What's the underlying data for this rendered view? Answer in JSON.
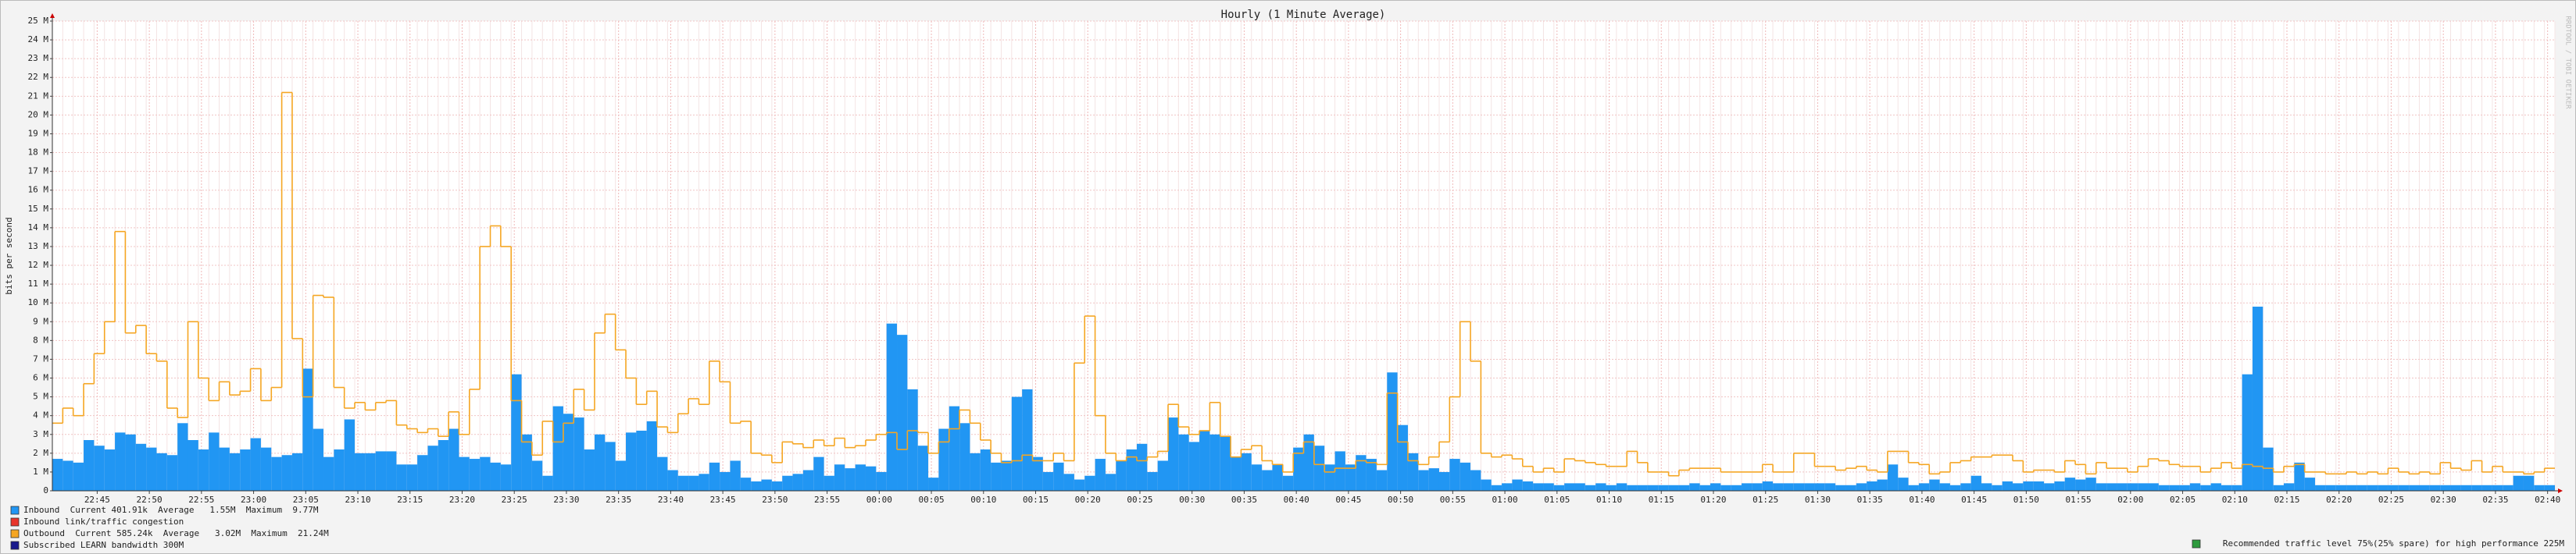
{
  "chart_data": {
    "type": "bar_step",
    "title": "Hourly (1 Minute Average)",
    "y_label": "bits per second",
    "side_text": "RRDTOOL / TOBI OETIKER",
    "categories": [
      null,
      null,
      null,
      null,
      "22:45",
      null,
      null,
      null,
      null,
      "22:50",
      null,
      null,
      null,
      null,
      "22:55",
      null,
      null,
      null,
      null,
      "23:00",
      null,
      null,
      null,
      null,
      "23:05",
      null,
      null,
      null,
      null,
      "23:10",
      null,
      null,
      null,
      null,
      "23:15",
      null,
      null,
      null,
      null,
      "23:20",
      null,
      null,
      null,
      null,
      "23:25",
      null,
      null,
      null,
      null,
      "23:30",
      null,
      null,
      null,
      null,
      "23:35",
      null,
      null,
      null,
      null,
      "23:40",
      null,
      null,
      null,
      null,
      "23:45",
      null,
      null,
      null,
      null,
      "23:50",
      null,
      null,
      null,
      null,
      "23:55",
      null,
      null,
      null,
      null,
      "00:00",
      null,
      null,
      null,
      null,
      "00:05",
      null,
      null,
      null,
      null,
      "00:10",
      null,
      null,
      null,
      null,
      "00:15",
      null,
      null,
      null,
      null,
      "00:20",
      null,
      null,
      null,
      null,
      "00:25",
      null,
      null,
      null,
      null,
      "00:30",
      null,
      null,
      null,
      null,
      "00:35",
      null,
      null,
      null,
      null,
      "00:40",
      null,
      null,
      null,
      null,
      "00:45",
      null,
      null,
      null,
      null,
      "00:50",
      null,
      null,
      null,
      null,
      "00:55",
      null,
      null,
      null,
      null,
      "01:00",
      null,
      null,
      null,
      null,
      "01:05",
      null,
      null,
      null,
      null,
      "01:10",
      null,
      null,
      null,
      null,
      "01:15",
      null,
      null,
      null,
      null,
      "01:20",
      null,
      null,
      null,
      null,
      "01:25",
      null,
      null,
      null,
      null,
      "01:30",
      null,
      null,
      null,
      null,
      "01:35",
      null,
      null,
      null,
      null,
      "01:40",
      null,
      null,
      null,
      null,
      "01:45",
      null,
      null,
      null,
      null,
      "01:50",
      null,
      null,
      null,
      null,
      "01:55",
      null,
      null,
      null,
      null,
      "02:00",
      null,
      null,
      null,
      null,
      "02:05",
      null,
      null,
      null,
      null,
      "02:10",
      null,
      null,
      null,
      null,
      "02:15",
      null,
      null,
      null,
      null,
      "02:20",
      null,
      null,
      null,
      null,
      "02:25",
      null,
      null,
      null,
      null,
      "02:30",
      null,
      null,
      null,
      null,
      "02:35",
      null,
      null,
      null,
      null,
      "02:40"
    ],
    "series": [
      {
        "name": "Inbound",
        "stats": "Current 401.91k  Average   1.55M  Maximum  9.77M",
        "color": "#2196f3",
        "style": "bar",
        "values": [
          1.7,
          1.6,
          1.5,
          2.7,
          2.4,
          2.2,
          3.1,
          3.0,
          2.5,
          2.3,
          2.0,
          1.9,
          3.6,
          2.7,
          2.2,
          3.1,
          2.3,
          2.0,
          2.2,
          2.8,
          2.3,
          1.8,
          1.9,
          2.0,
          6.5,
          3.3,
          1.8,
          2.2,
          3.8,
          2.0,
          2.0,
          2.1,
          2.1,
          1.4,
          1.4,
          1.9,
          2.4,
          2.7,
          3.3,
          1.8,
          1.7,
          1.8,
          1.5,
          1.4,
          6.2,
          3.0,
          1.6,
          0.8,
          4.5,
          4.1,
          3.9,
          2.2,
          3.0,
          2.6,
          1.6,
          3.1,
          3.2,
          3.7,
          1.8,
          1.1,
          0.8,
          0.8,
          0.9,
          1.5,
          1.0,
          1.6,
          0.7,
          0.5,
          0.6,
          0.5,
          0.8,
          0.9,
          1.1,
          1.8,
          0.8,
          1.4,
          1.2,
          1.4,
          1.3,
          1.0,
          8.9,
          8.3,
          5.4,
          2.4,
          0.7,
          3.3,
          4.5,
          3.6,
          2.0,
          2.2,
          1.5,
          1.6,
          5.0,
          5.4,
          1.8,
          1.0,
          1.5,
          0.9,
          0.6,
          0.8,
          1.7,
          0.9,
          1.6,
          2.2,
          2.5,
          1.0,
          1.6,
          3.9,
          3.0,
          2.6,
          3.2,
          3.0,
          2.9,
          1.8,
          2.0,
          1.4,
          1.1,
          1.4,
          0.8,
          2.3,
          3.0,
          2.4,
          1.4,
          2.1,
          1.4,
          1.9,
          1.7,
          1.1,
          6.3,
          3.5,
          2.0,
          1.1,
          1.2,
          1.0,
          1.7,
          1.5,
          1.1,
          0.6,
          0.3,
          0.4,
          0.6,
          0.5,
          0.4,
          0.4,
          0.3,
          0.4,
          0.4,
          0.3,
          0.4,
          0.3,
          0.4,
          0.3,
          0.3,
          0.3,
          0.3,
          0.3,
          0.3,
          0.4,
          0.3,
          0.4,
          0.3,
          0.3,
          0.4,
          0.4,
          0.5,
          0.4,
          0.4,
          0.4,
          0.4,
          0.4,
          0.4,
          0.3,
          0.3,
          0.4,
          0.5,
          0.6,
          1.4,
          0.7,
          0.3,
          0.4,
          0.6,
          0.4,
          0.3,
          0.4,
          0.8,
          0.4,
          0.3,
          0.5,
          0.4,
          0.5,
          0.5,
          0.4,
          0.5,
          0.7,
          0.6,
          0.7,
          0.4,
          0.4,
          0.4,
          0.4,
          0.4,
          0.4,
          0.3,
          0.3,
          0.3,
          0.4,
          0.3,
          0.4,
          0.3,
          0.3,
          6.2,
          9.8,
          2.3,
          0.3,
          0.4,
          1.5,
          0.7,
          0.3,
          0.3,
          0.3,
          0.3,
          0.3,
          0.3,
          0.3,
          0.3,
          0.3,
          0.3,
          0.3,
          0.3,
          0.3,
          0.3,
          0.3,
          0.3,
          0.3,
          0.3,
          0.3,
          0.8,
          0.8,
          0.3,
          0.3
        ]
      },
      {
        "name": "Outbound",
        "stats": "Current 585.24k  Average   3.02M  Maximum  21.24M",
        "color": "#f5a623",
        "style": "step",
        "values": [
          3.6,
          4.4,
          4.0,
          5.7,
          7.3,
          9.0,
          13.8,
          8.4,
          8.8,
          7.3,
          6.9,
          4.4,
          3.9,
          9.0,
          6.0,
          4.8,
          5.8,
          5.1,
          5.3,
          6.5,
          4.8,
          5.5,
          21.2,
          8.1,
          5.0,
          10.4,
          10.3,
          5.5,
          4.4,
          4.7,
          4.3,
          4.7,
          4.8,
          3.5,
          3.3,
          3.1,
          3.3,
          2.9,
          4.2,
          3.0,
          5.4,
          13.0,
          14.1,
          13.0,
          4.8,
          2.6,
          1.9,
          3.7,
          2.6,
          3.6,
          5.4,
          4.3,
          8.4,
          9.4,
          7.5,
          6.0,
          4.6,
          5.3,
          3.4,
          3.1,
          4.1,
          4.9,
          4.6,
          6.9,
          5.8,
          3.6,
          3.7,
          2.0,
          1.9,
          1.5,
          2.6,
          2.5,
          2.3,
          2.7,
          2.4,
          2.8,
          2.3,
          2.4,
          2.7,
          3.0,
          3.1,
          2.2,
          3.2,
          3.1,
          2.0,
          2.6,
          3.3,
          4.3,
          3.6,
          2.7,
          2.0,
          1.5,
          1.6,
          1.9,
          1.6,
          1.6,
          2.0,
          1.6,
          6.8,
          9.3,
          4.0,
          2.0,
          1.6,
          1.8,
          1.6,
          1.8,
          2.1,
          4.6,
          3.4,
          3.0,
          3.2,
          4.7,
          2.9,
          1.8,
          2.2,
          2.4,
          1.6,
          1.4,
          1.0,
          2.0,
          2.6,
          1.4,
          1.0,
          1.2,
          1.2,
          1.6,
          1.5,
          1.4,
          5.2,
          2.6,
          1.6,
          1.4,
          1.8,
          2.6,
          5.0,
          9.0,
          6.9,
          2.0,
          1.8,
          1.9,
          1.7,
          1.3,
          1.0,
          1.2,
          1.0,
          1.7,
          1.6,
          1.5,
          1.4,
          1.3,
          1.3,
          2.1,
          1.5,
          1.0,
          1.0,
          0.8,
          1.1,
          1.2,
          1.2,
          1.2,
          1.0,
          1.0,
          1.0,
          1.0,
          1.4,
          1.0,
          1.0,
          2.0,
          2.0,
          1.3,
          1.3,
          1.1,
          1.2,
          1.3,
          1.1,
          1.0,
          2.1,
          2.1,
          1.5,
          1.4,
          0.9,
          1.0,
          1.5,
          1.6,
          1.8,
          1.8,
          1.9,
          1.9,
          1.6,
          1.0,
          1.1,
          1.1,
          1.0,
          1.6,
          1.4,
          0.9,
          1.5,
          1.2,
          1.2,
          1.0,
          1.3,
          1.7,
          1.6,
          1.4,
          1.3,
          1.3,
          1.0,
          1.2,
          1.5,
          1.2,
          1.4,
          1.3,
          1.2,
          1.0,
          1.3,
          1.4,
          1.0,
          1.0,
          0.9,
          0.9,
          1.0,
          0.9,
          1.0,
          0.9,
          1.2,
          1.0,
          0.9,
          1.0,
          0.9,
          1.5,
          1.2,
          1.1,
          1.6,
          1.0,
          1.3,
          1.0,
          1.0,
          0.9,
          1.0,
          1.2
        ]
      }
    ],
    "legend_extra": [
      {
        "text": "Inbound link/traffic congestion",
        "color": "#e8342a"
      },
      {
        "text": "Subscribed LEARN bandwidth 300M",
        "color": "#1a1a8c"
      }
    ],
    "note": {
      "text": "Recommended traffic level 75%(25% spare) for high performance 225M",
      "color": "#2e9b3e"
    },
    "ylim": [
      0,
      25
    ],
    "yticks": [
      0,
      {
        "value": 1,
        "label": "1 M"
      },
      {
        "value": 2,
        "label": "2 M"
      },
      {
        "value": 3,
        "label": "3 M"
      },
      {
        "value": 4,
        "label": "4 M"
      },
      {
        "value": 5,
        "label": "5 M"
      },
      {
        "value": 6,
        "label": "6 M"
      },
      {
        "value": 7,
        "label": "7 M"
      },
      {
        "value": 8,
        "label": "8 M"
      },
      {
        "value": 9,
        "label": "9 M"
      },
      {
        "value": 10,
        "label": "10 M"
      },
      {
        "value": 11,
        "label": "11 M"
      },
      {
        "value": 12,
        "label": "12 M"
      },
      {
        "value": 13,
        "label": "13 M"
      },
      {
        "value": 14,
        "label": "14 M"
      },
      {
        "value": 15,
        "label": "15 M"
      },
      {
        "value": 16,
        "label": "16 M"
      },
      {
        "value": 17,
        "label": "17 M"
      },
      {
        "value": 18,
        "label": "18 M"
      },
      {
        "value": 19,
        "label": "19 M"
      },
      {
        "value": 20,
        "label": "20 M"
      },
      {
        "value": 21,
        "label": "21 M"
      },
      {
        "value": 22,
        "label": "22 M"
      },
      {
        "value": 23,
        "label": "23 M"
      },
      {
        "value": 24,
        "label": "24 M"
      },
      {
        "value": 25,
        "label": "25 M"
      }
    ],
    "grid": true
  }
}
